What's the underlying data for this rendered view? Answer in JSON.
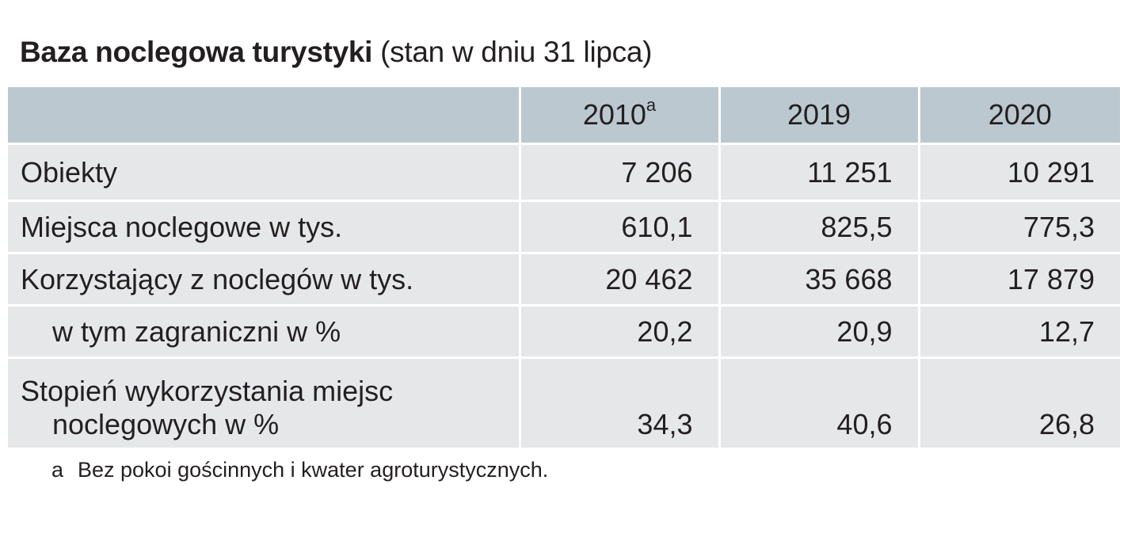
{
  "title": {
    "main": "Baza noclegowa turystyki",
    "sub": "(stan w dniu 31 lipca)"
  },
  "table": {
    "header": {
      "col1": "2010",
      "col1_mark": "a",
      "col2": "2019",
      "col3": "2020"
    },
    "rows": [
      {
        "label": "Obiekty",
        "v2010": "7 206",
        "v2019": "11 251",
        "v2020": "10 291"
      },
      {
        "label": "Miejsca noclegowe w tys.",
        "v2010": "610,1",
        "v2019": "825,5",
        "v2020": "775,3"
      },
      {
        "label": "Korzystający z noclegów w tys.",
        "v2010": "20 462",
        "v2019": "35 668",
        "v2020": "17 879"
      },
      {
        "label": "w tym zagraniczni w %",
        "v2010": "20,2",
        "v2019": "20,9",
        "v2020": "12,7"
      },
      {
        "label_line1": "Stopień wykorzystania miejsc",
        "label_line2": "noclegowych w %",
        "v2010": "34,3",
        "v2019": "40,6",
        "v2020": "26,8"
      }
    ],
    "colors": {
      "header_bg": "#bcc8d0",
      "body_bg": "#e6e7e9",
      "text": "#231f20"
    }
  },
  "footnote": {
    "mark": "a",
    "text": "Bez pokoi gościnnych i kwater agroturystycznych."
  }
}
